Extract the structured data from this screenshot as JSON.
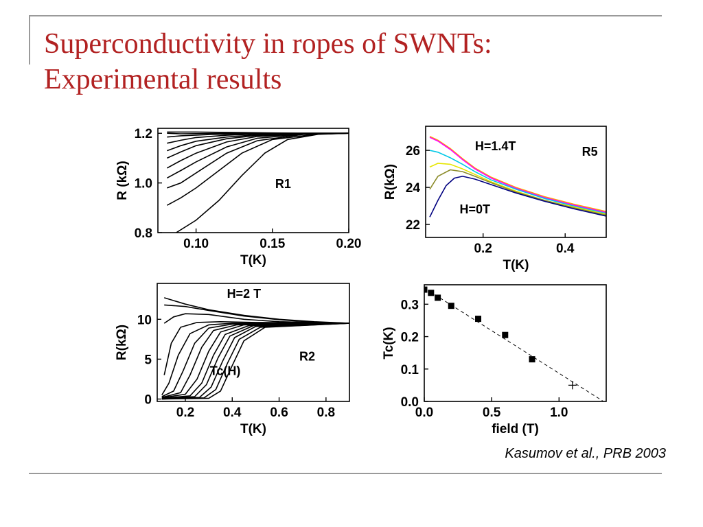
{
  "slide": {
    "title_line1": "Superconductivity in ropes of SWNTs:",
    "title_line2": "Experimental results",
    "citation": "Kasumov et al., PRB 2003",
    "title_color": "#b22222"
  },
  "chart_data": [
    {
      "id": "r1",
      "type": "line",
      "xlabel": "T(K)",
      "ylabel": "R (kΩ)",
      "xlim": [
        0.075,
        0.2
      ],
      "ylim": [
        0.8,
        1.22
      ],
      "xticks": [
        0.1,
        0.15,
        0.2
      ],
      "xtick_labels": [
        "0.10",
        "0.15",
        "0.20"
      ],
      "yticks": [
        0.8,
        1.0,
        1.2
      ],
      "ytick_labels": [
        "0.8",
        "1.0",
        "1.2"
      ],
      "annotations": [
        {
          "text": "R1",
          "x": 0.157,
          "y": 0.98
        }
      ],
      "series": [
        {
          "x": [
            0.081,
            0.1,
            0.13,
            0.17,
            0.2
          ],
          "y": [
            1.205,
            1.205,
            1.203,
            1.2,
            1.2
          ],
          "color": "#000000"
        },
        {
          "x": [
            0.081,
            0.09,
            0.11,
            0.13,
            0.16,
            0.2
          ],
          "y": [
            1.2,
            1.198,
            1.199,
            1.2,
            1.2,
            1.2
          ],
          "color": "#000000"
        },
        {
          "x": [
            0.081,
            0.09,
            0.11,
            0.13,
            0.16,
            0.2
          ],
          "y": [
            1.185,
            1.19,
            1.195,
            1.198,
            1.2,
            1.2
          ],
          "color": "#000000"
        },
        {
          "x": [
            0.081,
            0.09,
            0.1,
            0.12,
            0.14,
            0.17,
            0.2
          ],
          "y": [
            1.16,
            1.172,
            1.183,
            1.192,
            1.197,
            1.2,
            1.2
          ],
          "color": "#000000"
        },
        {
          "x": [
            0.081,
            0.09,
            0.1,
            0.12,
            0.14,
            0.17,
            0.2
          ],
          "y": [
            1.13,
            1.15,
            1.168,
            1.185,
            1.194,
            1.199,
            1.2
          ],
          "color": "#000000"
        },
        {
          "x": [
            0.081,
            0.09,
            0.1,
            0.12,
            0.14,
            0.17,
            0.2
          ],
          "y": [
            1.1,
            1.125,
            1.15,
            1.178,
            1.191,
            1.198,
            1.2
          ],
          "color": "#000000"
        },
        {
          "x": [
            0.081,
            0.09,
            0.1,
            0.12,
            0.14,
            0.17,
            0.2
          ],
          "y": [
            1.06,
            1.09,
            1.12,
            1.165,
            1.187,
            1.197,
            1.2
          ],
          "color": "#000000"
        },
        {
          "x": [
            0.081,
            0.09,
            0.1,
            0.12,
            0.14,
            0.17,
            0.2
          ],
          "y": [
            1.02,
            1.05,
            1.085,
            1.145,
            1.18,
            1.196,
            1.2
          ],
          "color": "#000000"
        },
        {
          "x": [
            0.081,
            0.09,
            0.1,
            0.12,
            0.14,
            0.17,
            0.2
          ],
          "y": [
            0.98,
            1.0,
            1.04,
            1.12,
            1.17,
            1.195,
            1.2
          ],
          "color": "#000000"
        },
        {
          "x": [
            0.081,
            0.09,
            0.1,
            0.115,
            0.13,
            0.15,
            0.18,
            0.2
          ],
          "y": [
            0.91,
            0.94,
            0.98,
            1.05,
            1.12,
            1.175,
            1.197,
            1.2
          ],
          "color": "#000000"
        },
        {
          "x": [
            0.087,
            0.1,
            0.115,
            0.13,
            0.145,
            0.16,
            0.18,
            0.2
          ],
          "y": [
            0.8,
            0.85,
            0.93,
            1.03,
            1.12,
            1.175,
            1.196,
            1.2
          ],
          "color": "#000000"
        }
      ]
    },
    {
      "id": "r5",
      "type": "line",
      "xlabel": "T(K)",
      "ylabel": "R(kΩ)",
      "xlim": [
        0.06,
        0.5
      ],
      "ylim": [
        21.3,
        27.3
      ],
      "xticks": [
        0.2,
        0.4
      ],
      "xtick_labels": [
        "0.2",
        "0.4"
      ],
      "yticks": [
        22,
        24,
        26
      ],
      "ytick_labels": [
        "22",
        "24",
        "26"
      ],
      "annotations": [
        {
          "text": "H=1.4T",
          "x": 0.23,
          "y": 26.0
        },
        {
          "text": "R5",
          "x": 0.46,
          "y": 25.7
        },
        {
          "text": "H=0T",
          "x": 0.18,
          "y": 22.6
        }
      ],
      "series": [
        {
          "x": [
            0.07,
            0.09,
            0.12,
            0.15,
            0.18,
            0.22,
            0.28,
            0.35,
            0.42,
            0.5
          ],
          "y": [
            26.75,
            26.55,
            26.1,
            25.55,
            25.05,
            24.55,
            24.0,
            23.5,
            23.1,
            22.7
          ],
          "color": "#ffa500"
        },
        {
          "x": [
            0.07,
            0.09,
            0.12,
            0.15,
            0.18,
            0.22,
            0.28,
            0.35,
            0.42,
            0.5
          ],
          "y": [
            26.7,
            26.5,
            26.05,
            25.5,
            25.0,
            24.5,
            23.95,
            23.45,
            23.05,
            22.65
          ],
          "color": "#ff00ff"
        },
        {
          "x": [
            0.07,
            0.09,
            0.12,
            0.15,
            0.18,
            0.22,
            0.28,
            0.35,
            0.42,
            0.5
          ],
          "y": [
            26.0,
            25.9,
            25.6,
            25.25,
            24.85,
            24.4,
            23.9,
            23.4,
            23.0,
            22.6
          ],
          "color": "#00c8e6"
        },
        {
          "x": [
            0.07,
            0.09,
            0.12,
            0.15,
            0.18,
            0.22,
            0.28,
            0.35,
            0.42,
            0.5
          ],
          "y": [
            25.1,
            25.3,
            25.25,
            25.0,
            24.7,
            24.3,
            23.8,
            23.3,
            22.95,
            22.55
          ],
          "color": "#e6e600"
        },
        {
          "x": [
            0.07,
            0.09,
            0.12,
            0.15,
            0.18,
            0.22,
            0.28,
            0.35,
            0.42,
            0.5
          ],
          "y": [
            23.9,
            24.6,
            24.95,
            24.85,
            24.6,
            24.25,
            23.75,
            23.3,
            22.9,
            22.5
          ],
          "color": "#8b8b2a"
        },
        {
          "x": [
            0.07,
            0.09,
            0.11,
            0.13,
            0.15,
            0.18,
            0.22,
            0.28,
            0.35,
            0.42,
            0.5
          ],
          "y": [
            22.4,
            23.3,
            24.1,
            24.5,
            24.6,
            24.45,
            24.15,
            23.7,
            23.25,
            22.85,
            22.45
          ],
          "color": "#000080"
        }
      ]
    },
    {
      "id": "r2",
      "type": "line",
      "xlabel": "T(K)",
      "ylabel": "R(kΩ)",
      "xlim": [
        0.08,
        0.9
      ],
      "ylim": [
        -0.3,
        14.5
      ],
      "xticks": [
        0.2,
        0.4,
        0.6,
        0.8
      ],
      "xtick_labels": [
        "0.2",
        "0.4",
        "0.6",
        "0.8"
      ],
      "yticks": [
        0,
        5,
        10
      ],
      "ytick_labels": [
        "0",
        "5",
        "10"
      ],
      "annotations": [
        {
          "text": "H=2 T",
          "x": 0.45,
          "y": 12.7
        },
        {
          "text": "R2",
          "x": 0.72,
          "y": 4.8
        },
        {
          "text": "Tc(H)",
          "x": 0.37,
          "y": 3.0
        }
      ],
      "series": [
        {
          "x": [
            0.11,
            0.2,
            0.3,
            0.45,
            0.6,
            0.75,
            0.9
          ],
          "y": [
            12.7,
            11.9,
            11.2,
            10.5,
            10.0,
            9.7,
            9.5
          ],
          "color": "#000000"
        },
        {
          "x": [
            0.11,
            0.2,
            0.3,
            0.45,
            0.6,
            0.75,
            0.9
          ],
          "y": [
            11.8,
            11.6,
            11.1,
            10.4,
            9.95,
            9.65,
            9.5
          ],
          "color": "#000000"
        },
        {
          "x": [
            0.11,
            0.15,
            0.2,
            0.3,
            0.45,
            0.6,
            0.9
          ],
          "y": [
            9.5,
            10.3,
            10.7,
            10.6,
            10.0,
            9.7,
            9.5
          ],
          "color": "#000000"
        },
        {
          "x": [
            0.11,
            0.14,
            0.18,
            0.25,
            0.35,
            0.5,
            0.9
          ],
          "y": [
            3.0,
            7.0,
            9.0,
            9.6,
            9.7,
            9.6,
            9.5
          ],
          "color": "#000000"
        },
        {
          "x": [
            0.1,
            0.13,
            0.17,
            0.22,
            0.3,
            0.4,
            0.9
          ],
          "y": [
            0.5,
            2.0,
            5.5,
            8.2,
            9.3,
            9.5,
            9.5
          ],
          "color": "#000000"
        },
        {
          "x": [
            0.1,
            0.15,
            0.19,
            0.24,
            0.3,
            0.4,
            0.9
          ],
          "y": [
            0.3,
            1.0,
            3.5,
            7.0,
            8.9,
            9.4,
            9.5
          ],
          "color": "#000000"
        },
        {
          "x": [
            0.1,
            0.18,
            0.22,
            0.27,
            0.32,
            0.42,
            0.9
          ],
          "y": [
            0.2,
            0.8,
            3.0,
            6.5,
            8.6,
            9.3,
            9.5
          ],
          "color": "#000000"
        },
        {
          "x": [
            0.1,
            0.2,
            0.25,
            0.3,
            0.35,
            0.45,
            0.9
          ],
          "y": [
            0.15,
            0.6,
            2.5,
            6.0,
            8.4,
            9.3,
            9.5
          ],
          "color": "#000000"
        },
        {
          "x": [
            0.1,
            0.22,
            0.27,
            0.32,
            0.37,
            0.47,
            0.9
          ],
          "y": [
            0.1,
            0.4,
            2.0,
            5.5,
            8.1,
            9.2,
            9.5
          ],
          "color": "#000000"
        },
        {
          "x": [
            0.1,
            0.24,
            0.29,
            0.34,
            0.39,
            0.49,
            0.9
          ],
          "y": [
            0.05,
            0.3,
            1.8,
            5.2,
            7.9,
            9.2,
            9.5
          ],
          "color": "#000000"
        },
        {
          "x": [
            0.1,
            0.26,
            0.31,
            0.36,
            0.41,
            0.5,
            0.9
          ],
          "y": [
            0.0,
            0.2,
            1.5,
            4.8,
            7.7,
            9.1,
            9.5
          ],
          "color": "#000000"
        },
        {
          "x": [
            0.1,
            0.28,
            0.33,
            0.38,
            0.43,
            0.52,
            0.9
          ],
          "y": [
            0.0,
            0.15,
            1.2,
            4.5,
            7.5,
            9.0,
            9.5
          ],
          "color": "#000000"
        },
        {
          "x": [
            0.1,
            0.3,
            0.35,
            0.4,
            0.45,
            0.54,
            0.9
          ],
          "y": [
            0.0,
            0.1,
            1.0,
            4.2,
            7.3,
            9.0,
            9.5
          ],
          "color": "#000000"
        }
      ]
    },
    {
      "id": "tc",
      "type": "scatter",
      "xlabel": "field (T)",
      "ylabel": "Tc(K)",
      "xlim": [
        0.0,
        1.35
      ],
      "ylim": [
        0.0,
        0.36
      ],
      "xticks": [
        0.0,
        0.5,
        1.0
      ],
      "xtick_labels": [
        "0.0",
        "0.5",
        "1.0"
      ],
      "yticks": [
        0.0,
        0.1,
        0.2,
        0.3
      ],
      "ytick_labels": [
        "0.0",
        "0.1",
        "0.2",
        "0.3"
      ],
      "points_x": [
        0.0,
        0.05,
        0.1,
        0.2,
        0.4,
        0.6,
        0.8
      ],
      "points_y": [
        0.345,
        0.335,
        0.32,
        0.295,
        0.255,
        0.205,
        0.13
      ],
      "cross_point": [
        1.1,
        0.05
      ],
      "fit_line": {
        "x": [
          0.0,
          1.33
        ],
        "y": [
          0.35,
          0.0
        ]
      }
    }
  ]
}
